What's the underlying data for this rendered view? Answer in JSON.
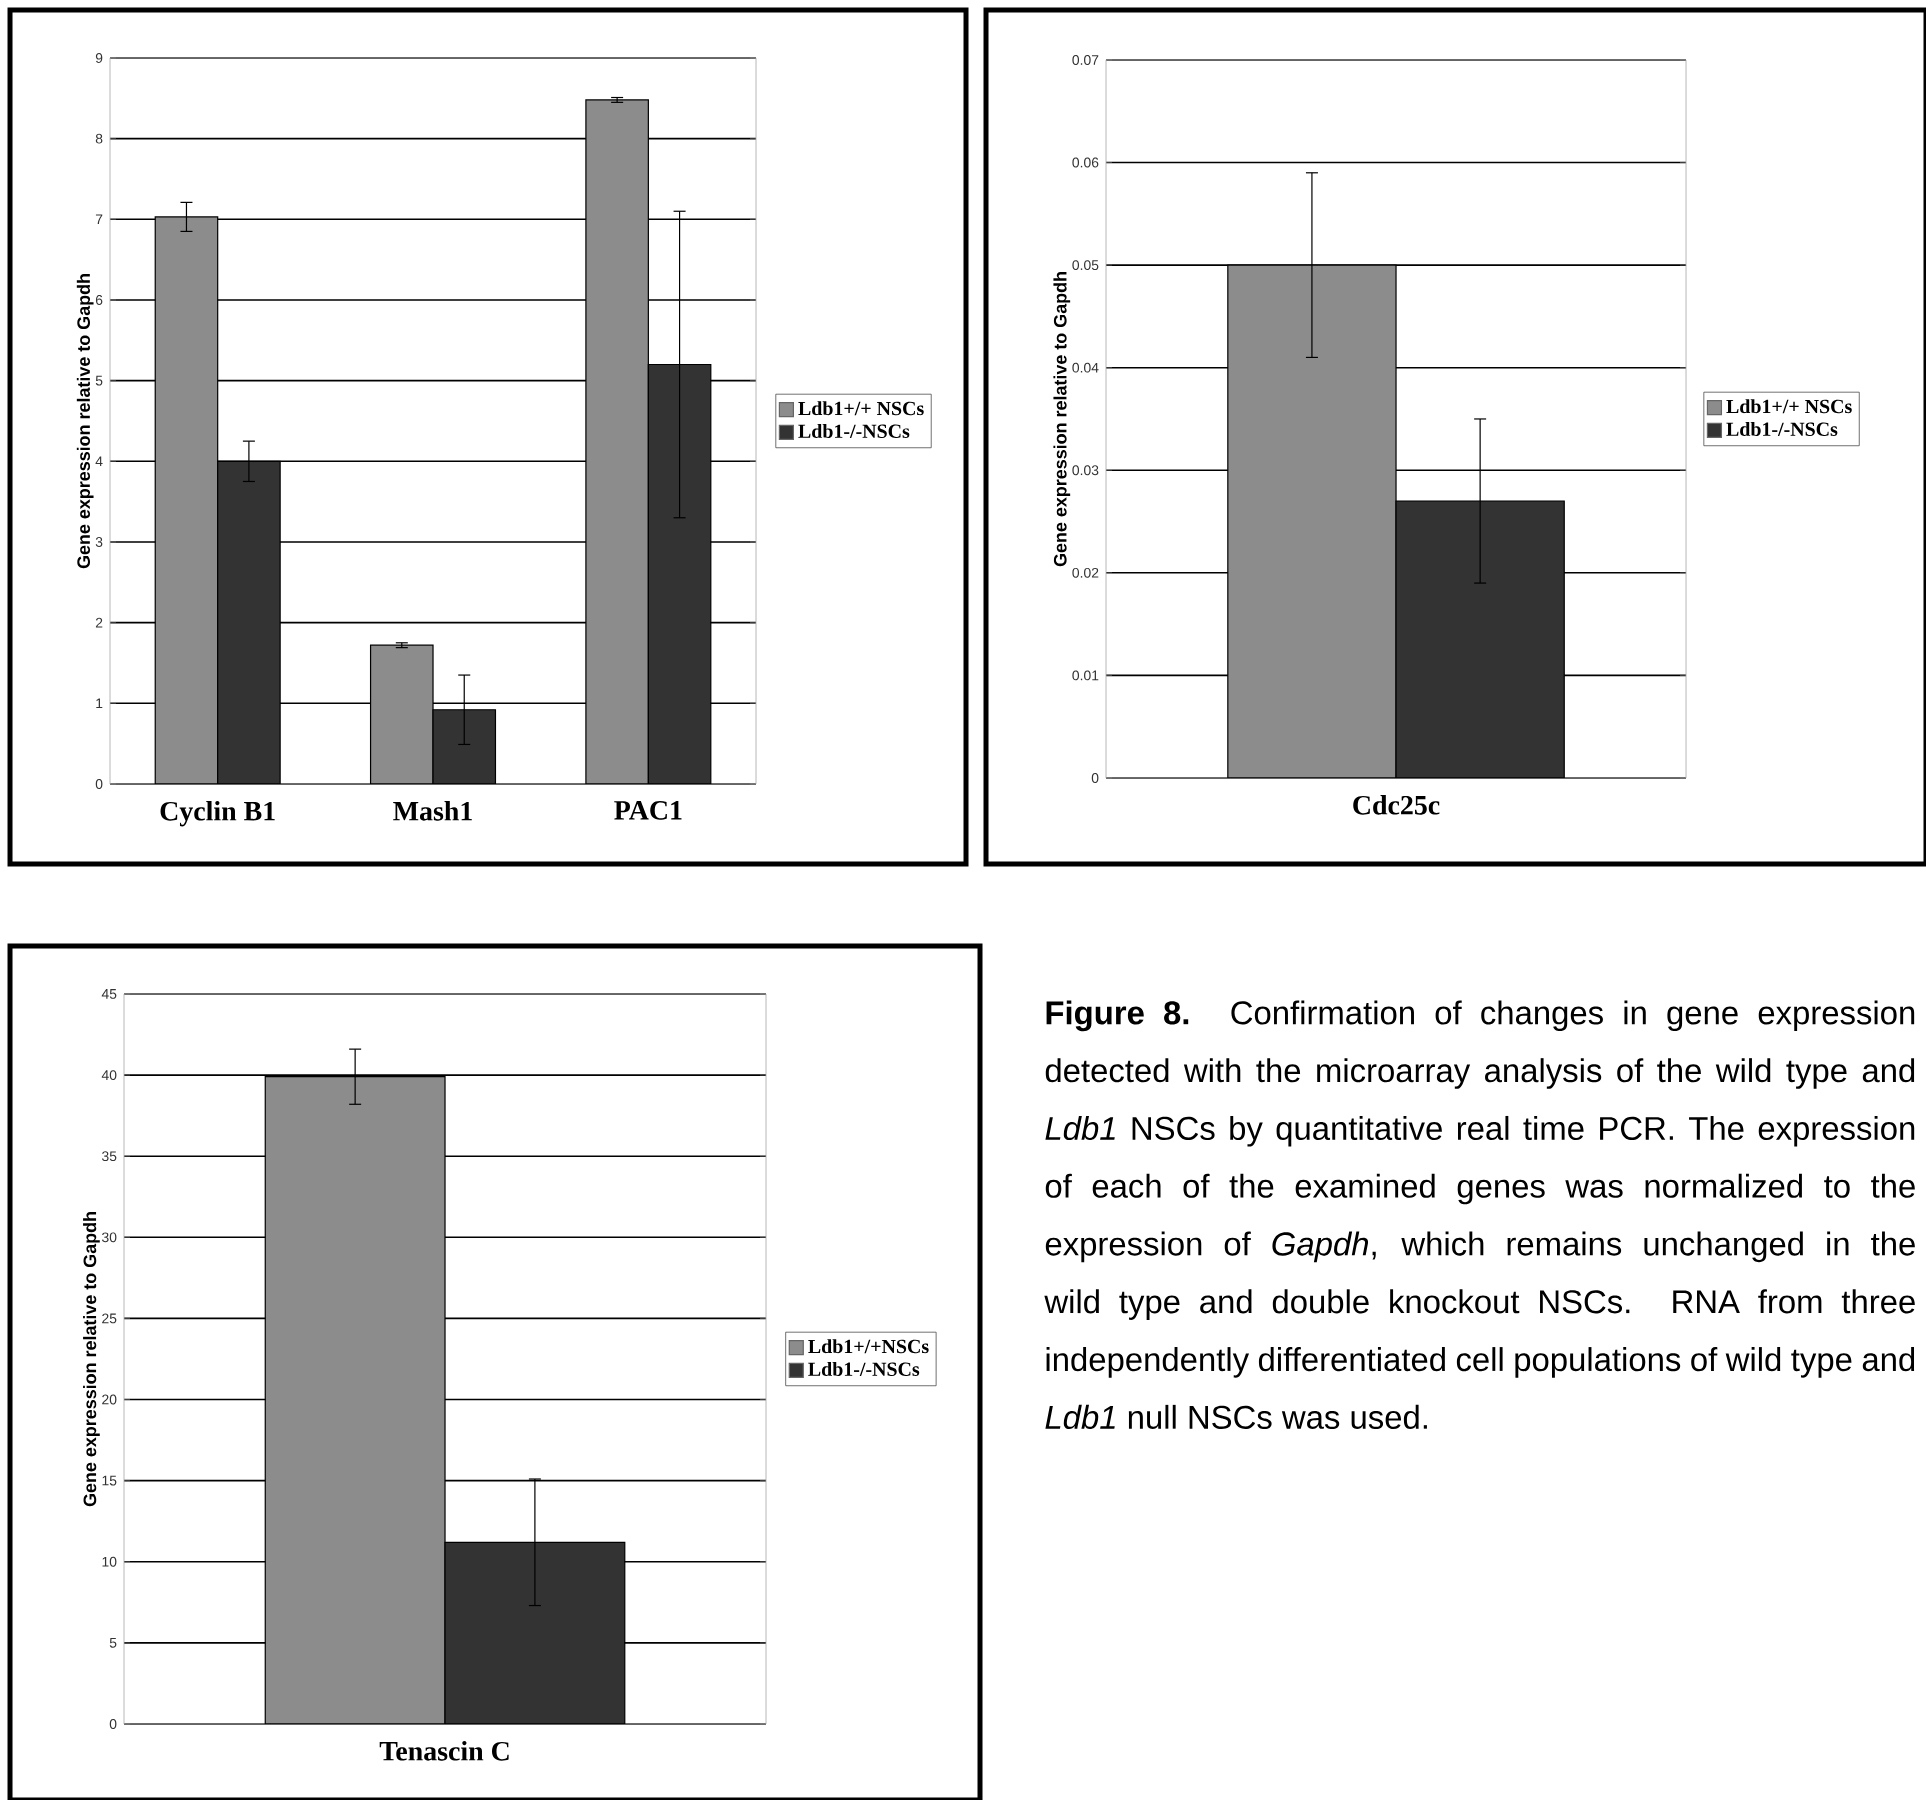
{
  "chart_data": [
    {
      "type": "bar",
      "ylabel": "Gene expression relative to Gapdh",
      "categories": [
        "Cyclin B1",
        "Mash1",
        "PAC1"
      ],
      "series": [
        {
          "name": "Ldb1+/+ NSCs",
          "color": "#8c8c8c",
          "values": [
            7.03,
            1.72,
            8.48
          ],
          "errors": [
            0.18,
            0.03,
            0.03
          ]
        },
        {
          "name": "Ldb1-/-NSCs",
          "color": "#333333",
          "values": [
            4.0,
            0.92,
            5.2
          ],
          "errors": [
            0.25,
            0.43,
            1.9
          ]
        }
      ],
      "ylim": [
        0,
        9
      ],
      "yticks": [
        0,
        1,
        2,
        3,
        4,
        5,
        6,
        7,
        8,
        9
      ],
      "grid": "y",
      "legend": "right"
    },
    {
      "type": "bar",
      "ylabel": "Gene expression relative to Gapdh",
      "categories": [
        "Cdc25c"
      ],
      "series": [
        {
          "name": "Ldb1+/+ NSCs",
          "color": "#8c8c8c",
          "values": [
            0.05
          ],
          "errors": [
            0.009
          ]
        },
        {
          "name": "Ldb1-/-NSCs",
          "color": "#333333",
          "values": [
            0.027
          ],
          "errors": [
            0.008
          ]
        }
      ],
      "ylim": [
        0,
        0.07
      ],
      "yticks": [
        0,
        0.01,
        0.02,
        0.03,
        0.04,
        0.05,
        0.06,
        0.07
      ],
      "grid": "y",
      "legend": "right"
    },
    {
      "type": "bar",
      "ylabel": "Gene expression relative to Gapdh",
      "categories": [
        "Tenascin C"
      ],
      "series": [
        {
          "name": "Ldb1+/+NSCs",
          "color": "#8c8c8c",
          "values": [
            39.9
          ],
          "errors": [
            1.7
          ]
        },
        {
          "name": "Ldb1-/-NSCs",
          "color": "#333333",
          "values": [
            11.2
          ],
          "errors": [
            3.9
          ]
        }
      ],
      "ylim": [
        0,
        45
      ],
      "yticks": [
        0,
        5,
        10,
        15,
        20,
        25,
        30,
        35,
        40,
        45
      ],
      "grid": "y",
      "legend": "right"
    },
    {
      "type": "other",
      "annotations": [
        "**Figure 8.** Confirmation of changes in gene expression detected with the microarray analysis of the wild type and *Ldb1* NSCs by quantitative real time PCR. The expression of each of the examined genes was normalized to the expression of *Gapdh*, which remains unchanged in the wild type and double knockout NSCs. RNA from three independently differentiated cell populations of wild type and *Ldb1* null NSCs was used."
      ]
    }
  ]
}
